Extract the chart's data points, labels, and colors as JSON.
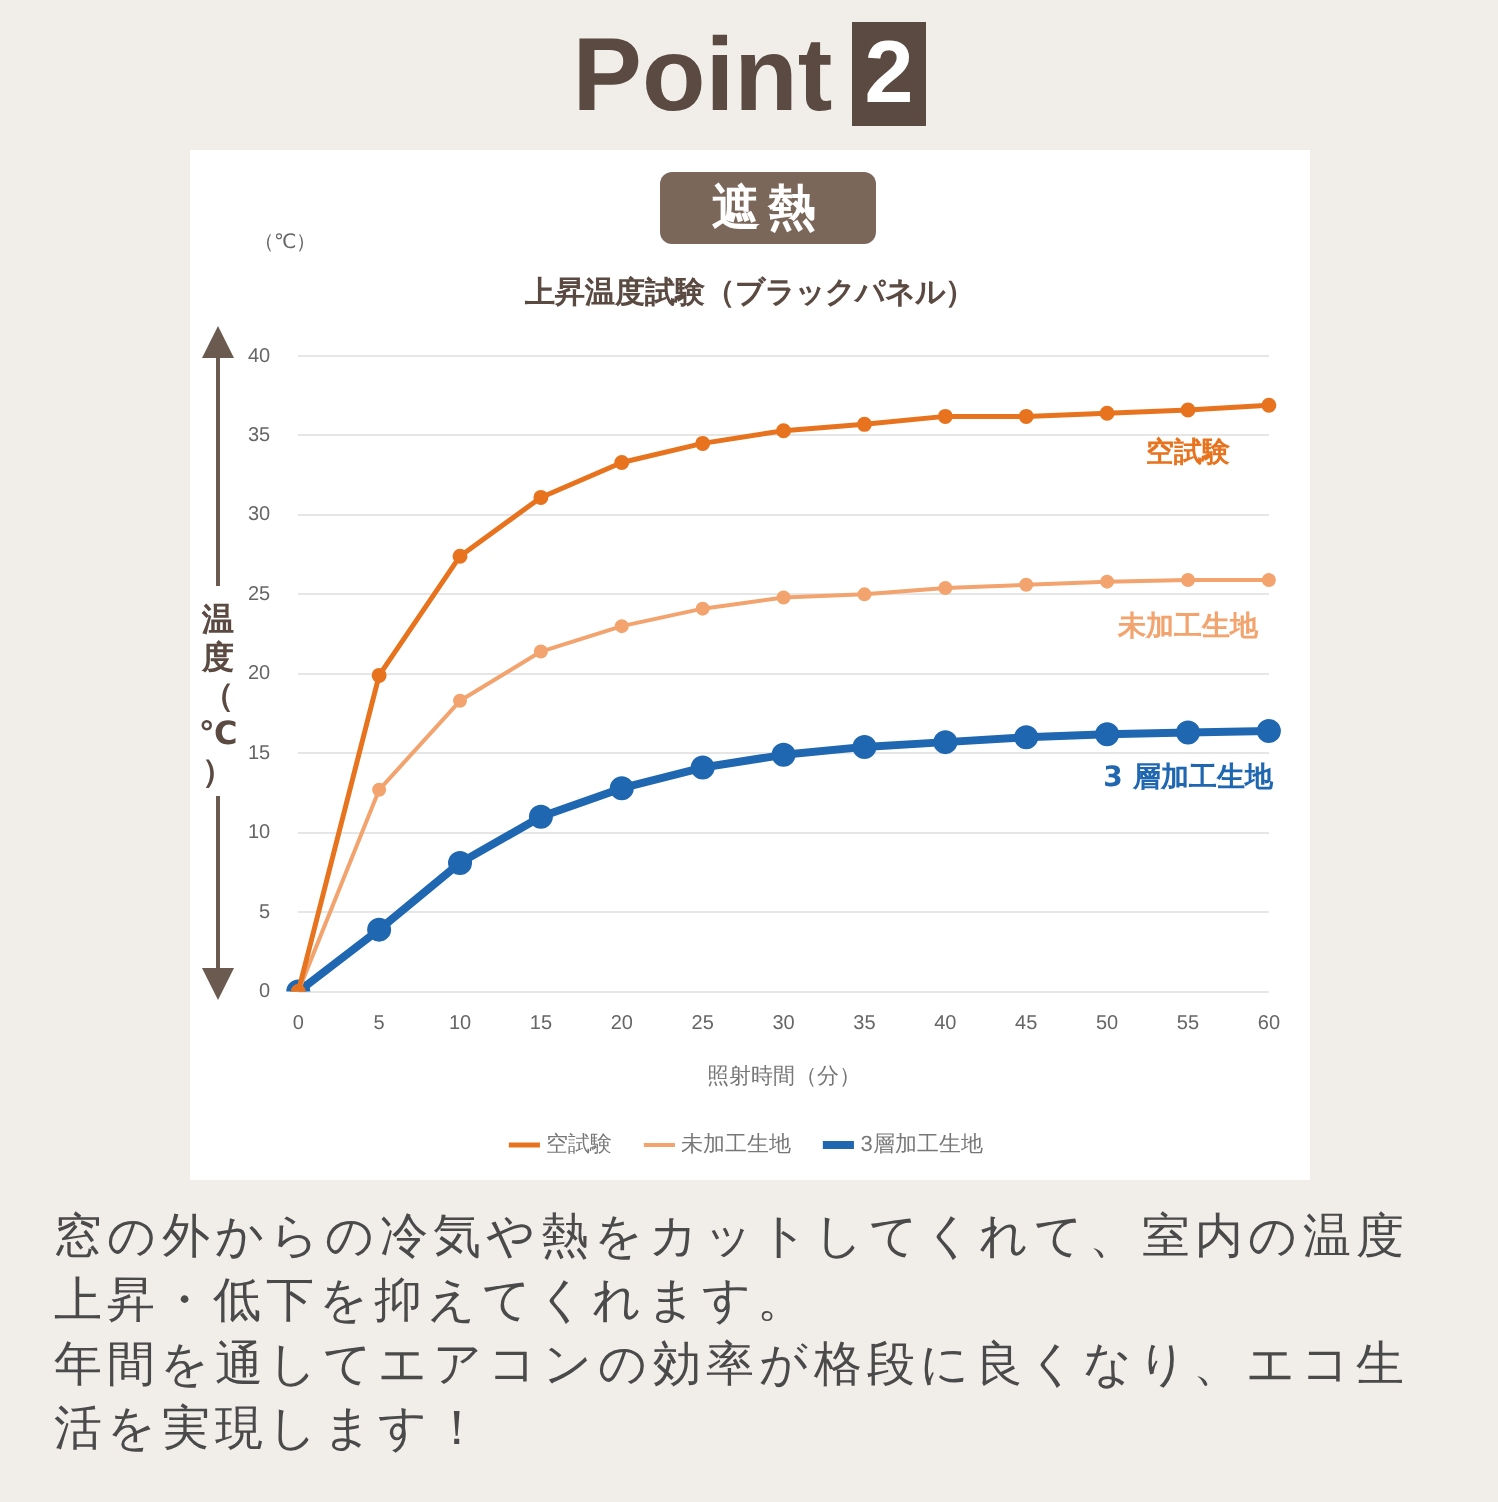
{
  "chart_data": {
    "type": "line",
    "title": "上昇温度試験（ブラックパネル）",
    "xlabel": "照射時間（分）",
    "ylabel": "温度（℃）",
    "categories": [
      "0",
      "5",
      "10",
      "15",
      "20",
      "25",
      "30",
      "35",
      "40",
      "45",
      "50",
      "55",
      "60"
    ],
    "series": [
      {
        "name": "空試験",
        "color": "#e8731e",
        "values": [
          0,
          19.9,
          27.4,
          31.1,
          33.3,
          34.5,
          35.3,
          35.7,
          36.2,
          36.2,
          36.4,
          36.6,
          36.9
        ]
      },
      {
        "name": "未加工生地",
        "color": "#f2a36e",
        "values": [
          0,
          12.7,
          18.3,
          21.4,
          23.0,
          24.1,
          24.8,
          25.0,
          25.4,
          25.6,
          25.8,
          25.9,
          25.9
        ]
      },
      {
        "name": "3層加工生地",
        "color": "#1f67b1",
        "values": [
          0,
          3.9,
          8.1,
          11.0,
          12.8,
          14.1,
          14.9,
          15.4,
          15.7,
          16.0,
          16.2,
          16.3,
          16.4
        ]
      }
    ],
    "ylim": [
      0,
      40
    ],
    "yticks": [
      0,
      5,
      10,
      15,
      20,
      25,
      30,
      35,
      40
    ],
    "grid": "y",
    "legend": "bottom",
    "marker": "circle",
    "line_style": "solid",
    "annotations": [
      "Point",
      "2",
      "遮熱",
      "（℃）",
      "窓の外からの冷気や熱をカットしてくれて、室内の温度上昇・低下を抑えてくれます。",
      "年間を通してエアコンの効率が格段に良くなり、エコ生活を実現します！",
      "空試験",
      "未加工生地",
      "3 層加工生地"
    ]
  }
}
